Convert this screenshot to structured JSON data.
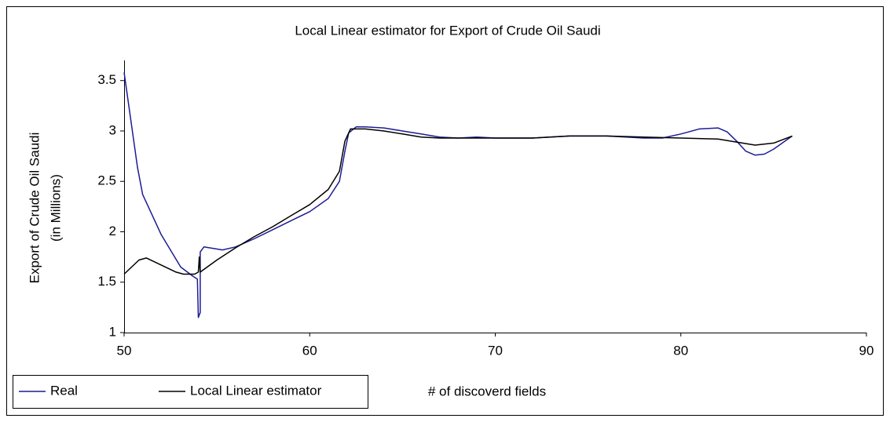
{
  "chart_data": {
    "type": "line",
    "title": "Local Linear estimator for Export of Crude Oil Saudi",
    "x_label": "# of discoverd fields",
    "y_label": [
      "Export of Crude Oil Saudi",
      "(in Millions)"
    ],
    "xlim": [
      50,
      90
    ],
    "xticks": [
      50,
      60,
      70,
      80,
      90
    ],
    "ylim": [
      1,
      3.7
    ],
    "yticks": [
      1,
      1.5,
      2,
      2.5,
      3,
      3.5
    ],
    "legend": "bottom-left",
    "series": [
      {
        "name": "Real",
        "color": "#1c1c96",
        "x": [
          50,
          50.72,
          51,
          52,
          53.05,
          53.7,
          53.95,
          54,
          54.1,
          54.1,
          54.3,
          55.3,
          56,
          57,
          58,
          59,
          60,
          61,
          61.6,
          61.9,
          62.1,
          62.5,
          63,
          64,
          65,
          66,
          67,
          68,
          69,
          70,
          72,
          74,
          76,
          78,
          79,
          80,
          81,
          82,
          82.5,
          83,
          83.5,
          84,
          84.5,
          85,
          86
        ],
        "values": [
          3.58,
          2.64,
          2.37,
          1.97,
          1.65,
          1.56,
          1.53,
          1.15,
          1.2,
          1.8,
          1.85,
          1.82,
          1.85,
          1.93,
          2.02,
          2.11,
          2.2,
          2.33,
          2.5,
          2.8,
          2.98,
          3.04,
          3.04,
          3.03,
          3,
          2.97,
          2.94,
          2.93,
          2.94,
          2.93,
          2.93,
          2.95,
          2.95,
          2.93,
          2.93,
          2.97,
          3.02,
          3.03,
          2.99,
          2.9,
          2.8,
          2.76,
          2.77,
          2.82,
          2.95
        ]
      },
      {
        "name": "Local Linear estimator",
        "color": "#000000",
        "x": [
          50,
          50.8,
          51.2,
          52,
          52.8,
          53.2,
          53.8,
          54,
          54.05,
          54.1,
          55,
          56,
          57,
          58,
          59,
          60,
          61,
          61.6,
          61.9,
          62.2,
          63,
          64,
          65,
          66,
          67,
          70,
          72,
          74,
          76,
          78,
          80,
          82,
          83,
          84,
          85,
          86
        ],
        "values": [
          1.58,
          1.72,
          1.74,
          1.67,
          1.6,
          1.58,
          1.58,
          1.6,
          1.75,
          1.6,
          1.72,
          1.84,
          1.95,
          2.05,
          2.16,
          2.27,
          2.42,
          2.6,
          2.9,
          3.02,
          3.02,
          3,
          2.97,
          2.94,
          2.93,
          2.93,
          2.93,
          2.95,
          2.95,
          2.94,
          2.93,
          2.92,
          2.89,
          2.86,
          2.88,
          2.95
        ]
      }
    ]
  }
}
